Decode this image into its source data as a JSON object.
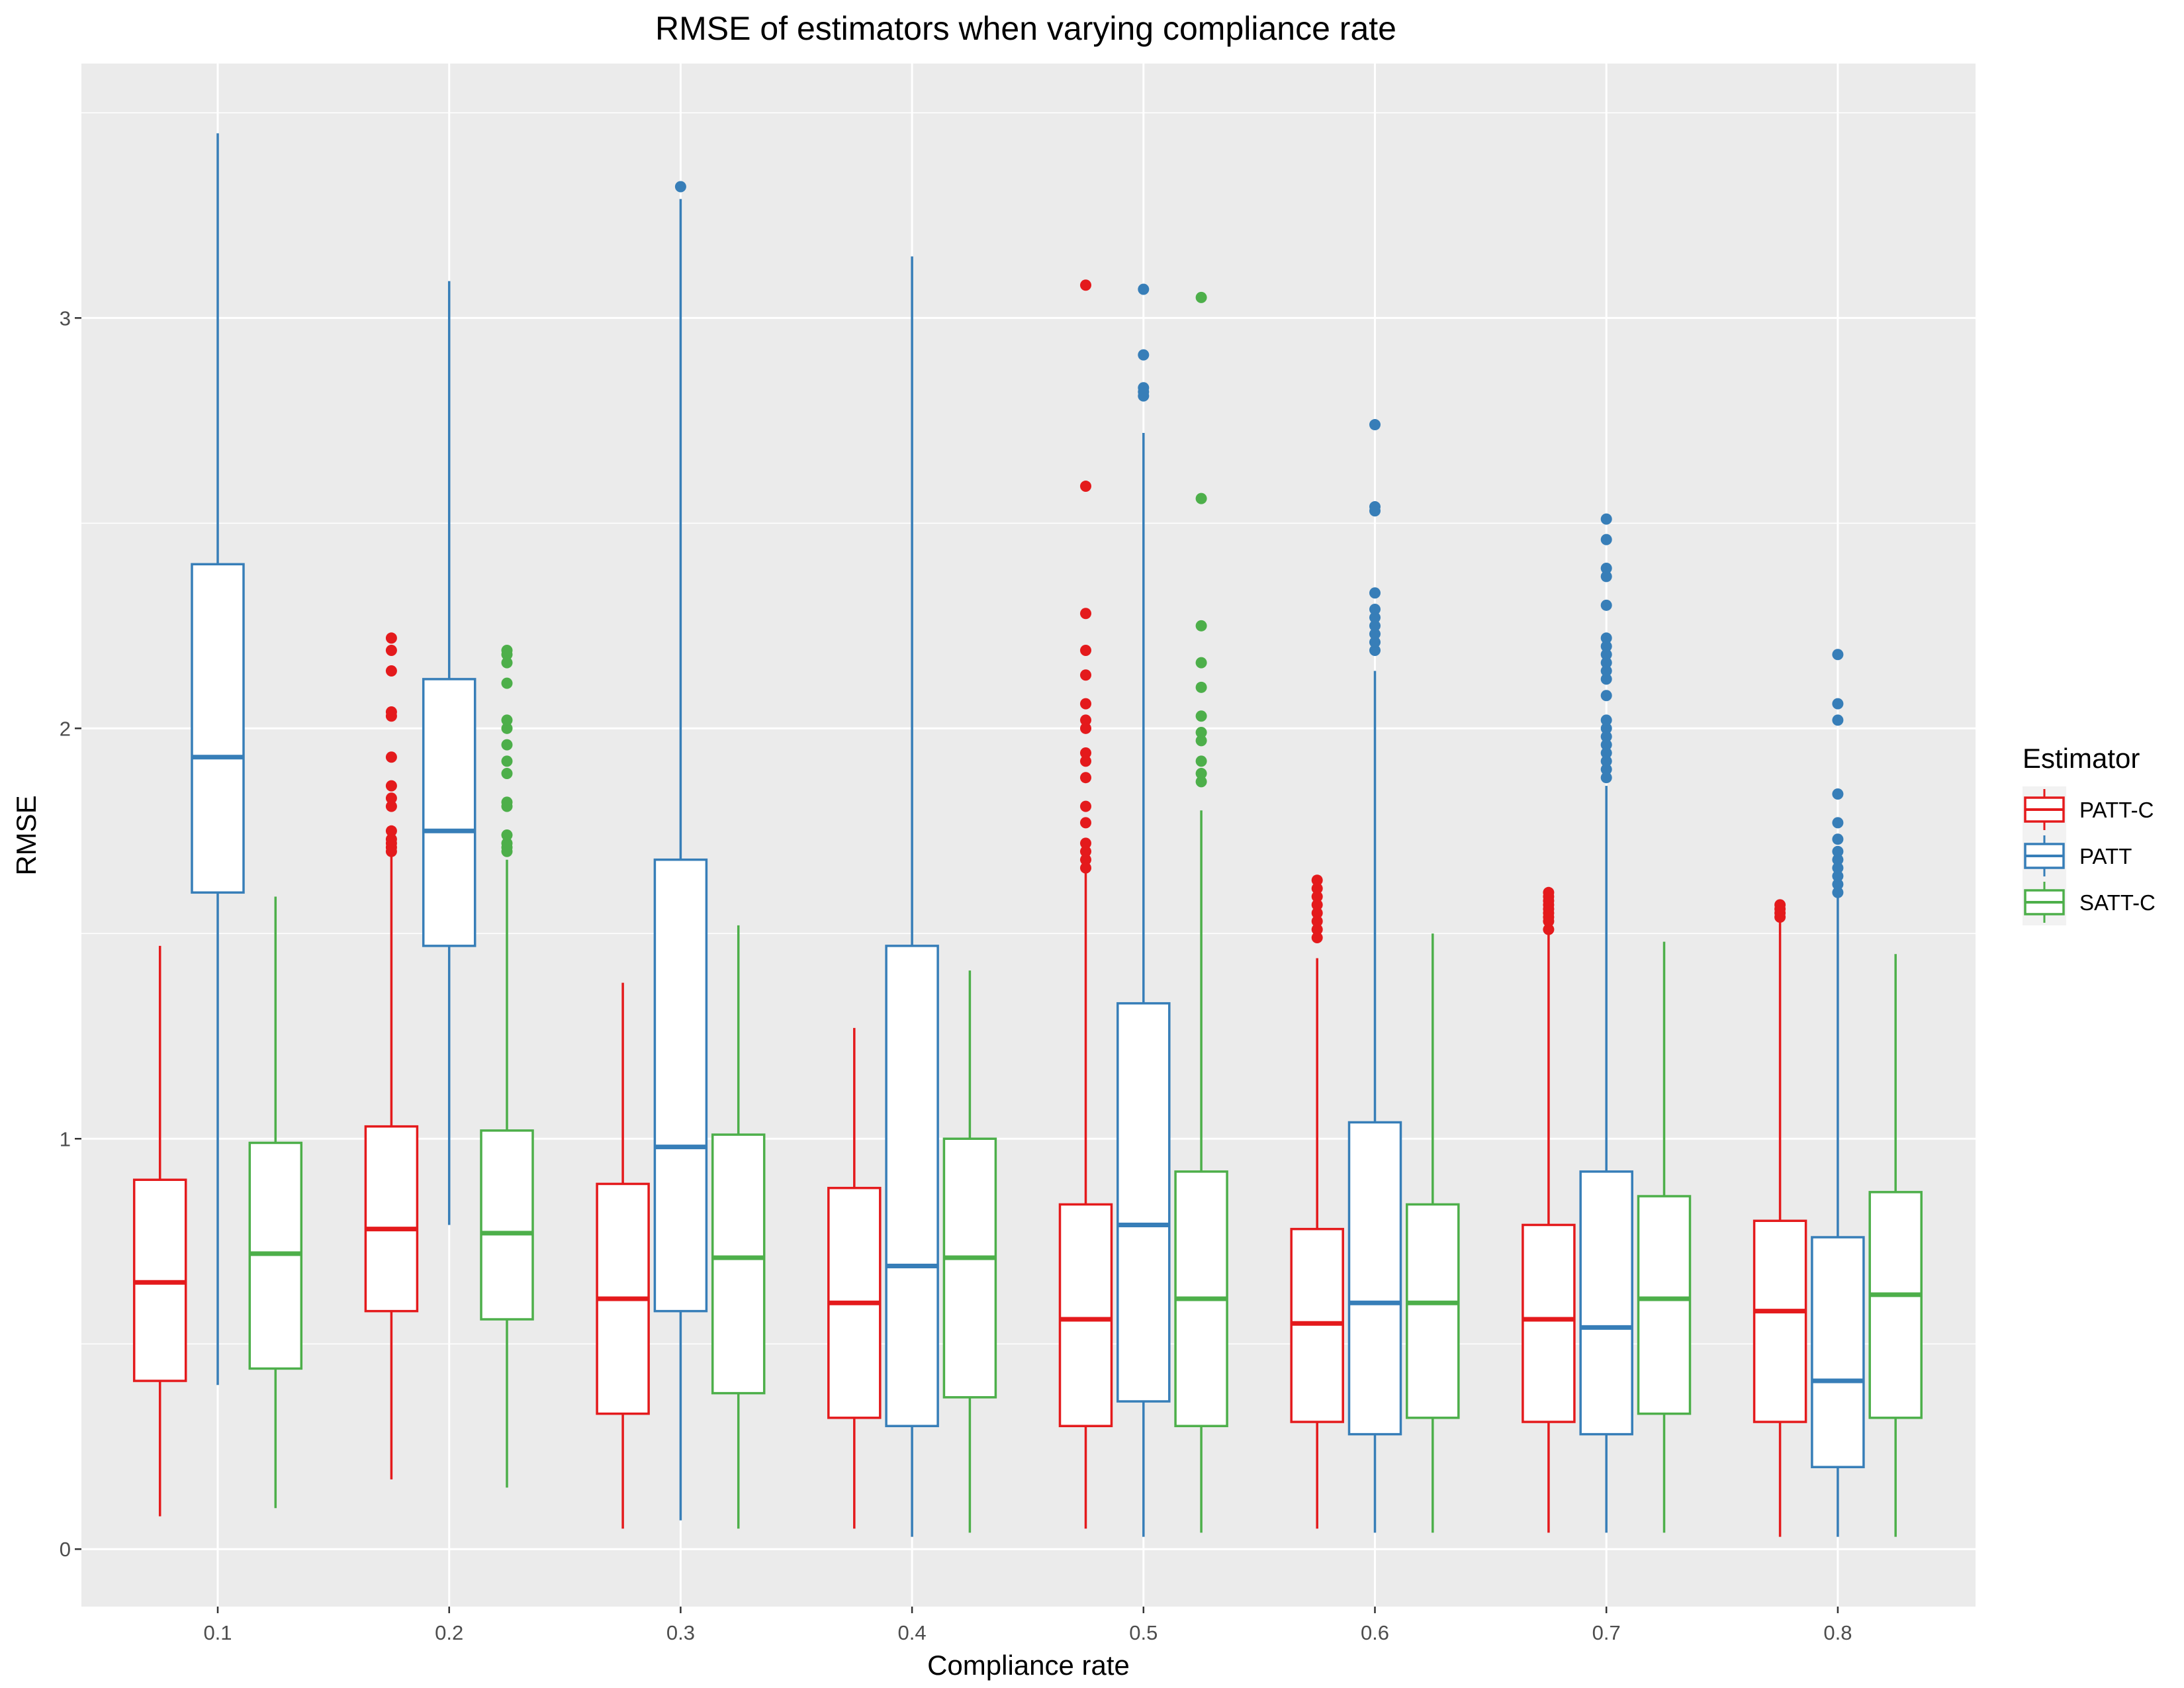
{
  "chart_data": {
    "type": "boxplot",
    "title": "RMSE of estimators when varying compliance rate",
    "xlabel": "Compliance rate",
    "ylabel": "RMSE",
    "categories": [
      "0.1",
      "0.2",
      "0.3",
      "0.4",
      "0.5",
      "0.6",
      "0.7",
      "0.8"
    ],
    "y_ticks": [
      "0",
      "1",
      "2",
      "3"
    ],
    "ylim": [
      -0.14,
      3.62
    ],
    "grid": true,
    "legend": {
      "title": "Estimator",
      "position": "right"
    },
    "series": [
      {
        "name": "PATT-C",
        "color": "#e41a1c",
        "boxes": [
          {
            "lower": 0.08,
            "q1": 0.41,
            "median": 0.65,
            "q3": 0.9,
            "upper": 1.47,
            "outliers": []
          },
          {
            "lower": 0.17,
            "q1": 0.58,
            "median": 0.78,
            "q3": 1.03,
            "upper": 1.69,
            "outliers": [
              1.7,
              1.71,
              1.72,
              1.73,
              1.75,
              1.81,
              1.83,
              1.86,
              1.93,
              2.03,
              2.04,
              2.14,
              2.19,
              2.22
            ]
          },
          {
            "lower": 0.05,
            "q1": 0.33,
            "median": 0.61,
            "q3": 0.89,
            "upper": 1.38,
            "outliers": []
          },
          {
            "lower": 0.05,
            "q1": 0.32,
            "median": 0.6,
            "q3": 0.88,
            "upper": 1.27,
            "outliers": []
          },
          {
            "lower": 0.05,
            "q1": 0.3,
            "median": 0.56,
            "q3": 0.84,
            "upper": 1.65,
            "outliers": [
              1.66,
              1.68,
              1.7,
              1.72,
              1.77,
              1.81,
              1.88,
              1.92,
              1.94,
              2.0,
              2.02,
              2.06,
              2.13,
              2.19,
              2.28,
              2.59,
              3.08
            ]
          },
          {
            "lower": 0.05,
            "q1": 0.31,
            "median": 0.55,
            "q3": 0.78,
            "upper": 1.44,
            "outliers": [
              1.49,
              1.51,
              1.53,
              1.55,
              1.57,
              1.59,
              1.61,
              1.63
            ]
          },
          {
            "lower": 0.04,
            "q1": 0.31,
            "median": 0.56,
            "q3": 0.79,
            "upper": 1.5,
            "outliers": [
              1.51,
              1.53,
              1.54,
              1.55,
              1.56,
              1.57,
              1.58,
              1.59,
              1.6
            ]
          },
          {
            "lower": 0.03,
            "q1": 0.31,
            "median": 0.58,
            "q3": 0.8,
            "upper": 1.53,
            "outliers": [
              1.54,
              1.55,
              1.56,
              1.57
            ]
          }
        ]
      },
      {
        "name": "PATT",
        "color": "#377eb8",
        "boxes": [
          {
            "lower": 0.4,
            "q1": 1.6,
            "median": 1.93,
            "q3": 2.4,
            "upper": 3.45,
            "outliers": []
          },
          {
            "lower": 0.79,
            "q1": 1.47,
            "median": 1.75,
            "q3": 2.12,
            "upper": 3.09,
            "outliers": []
          },
          {
            "lower": 0.07,
            "q1": 0.58,
            "median": 0.98,
            "q3": 1.68,
            "upper": 3.29,
            "outliers": [
              3.32
            ]
          },
          {
            "lower": 0.03,
            "q1": 0.3,
            "median": 0.69,
            "q3": 1.47,
            "upper": 3.15,
            "outliers": []
          },
          {
            "lower": 0.03,
            "q1": 0.36,
            "median": 0.79,
            "q3": 1.33,
            "upper": 2.72,
            "outliers": [
              2.81,
              2.82,
              2.83,
              2.91,
              3.07
            ]
          },
          {
            "lower": 0.04,
            "q1": 0.28,
            "median": 0.6,
            "q3": 1.04,
            "upper": 2.14,
            "outliers": [
              2.19,
              2.21,
              2.23,
              2.25,
              2.27,
              2.29,
              2.33,
              2.53,
              2.54,
              2.74
            ]
          },
          {
            "lower": 0.04,
            "q1": 0.28,
            "median": 0.54,
            "q3": 0.92,
            "upper": 1.86,
            "outliers": [
              1.88,
              1.9,
              1.92,
              1.94,
              1.96,
              1.98,
              2.0,
              2.02,
              2.08,
              2.12,
              2.14,
              2.16,
              2.18,
              2.2,
              2.22,
              2.3,
              2.37,
              2.39,
              2.46,
              2.51
            ]
          },
          {
            "lower": 0.03,
            "q1": 0.2,
            "median": 0.41,
            "q3": 0.76,
            "upper": 1.59,
            "outliers": [
              1.6,
              1.62,
              1.64,
              1.66,
              1.68,
              1.7,
              1.73,
              1.77,
              1.84,
              2.02,
              2.06,
              2.18
            ]
          }
        ]
      },
      {
        "name": "SATT-C",
        "color": "#4daf4a",
        "boxes": [
          {
            "lower": 0.1,
            "q1": 0.44,
            "median": 0.72,
            "q3": 0.99,
            "upper": 1.59,
            "outliers": []
          },
          {
            "lower": 0.15,
            "q1": 0.56,
            "median": 0.77,
            "q3": 1.02,
            "upper": 1.68,
            "outliers": [
              1.7,
              1.71,
              1.72,
              1.74,
              1.81,
              1.82,
              1.89,
              1.92,
              1.96,
              2.0,
              2.02,
              2.11,
              2.16,
              2.18,
              2.19
            ]
          },
          {
            "lower": 0.05,
            "q1": 0.38,
            "median": 0.71,
            "q3": 1.01,
            "upper": 1.52,
            "outliers": []
          },
          {
            "lower": 0.04,
            "q1": 0.37,
            "median": 0.71,
            "q3": 1.0,
            "upper": 1.41,
            "outliers": []
          },
          {
            "lower": 0.04,
            "q1": 0.3,
            "median": 0.61,
            "q3": 0.92,
            "upper": 1.8,
            "outliers": [
              1.87,
              1.89,
              1.92,
              1.97,
              1.99,
              2.03,
              2.1,
              2.16,
              2.25,
              2.56,
              3.05
            ]
          },
          {
            "lower": 0.04,
            "q1": 0.32,
            "median": 0.6,
            "q3": 0.84,
            "upper": 1.5,
            "outliers": []
          },
          {
            "lower": 0.04,
            "q1": 0.33,
            "median": 0.61,
            "q3": 0.86,
            "upper": 1.48,
            "outliers": []
          },
          {
            "lower": 0.03,
            "q1": 0.32,
            "median": 0.62,
            "q3": 0.87,
            "upper": 1.45,
            "outliers": []
          }
        ]
      }
    ]
  }
}
